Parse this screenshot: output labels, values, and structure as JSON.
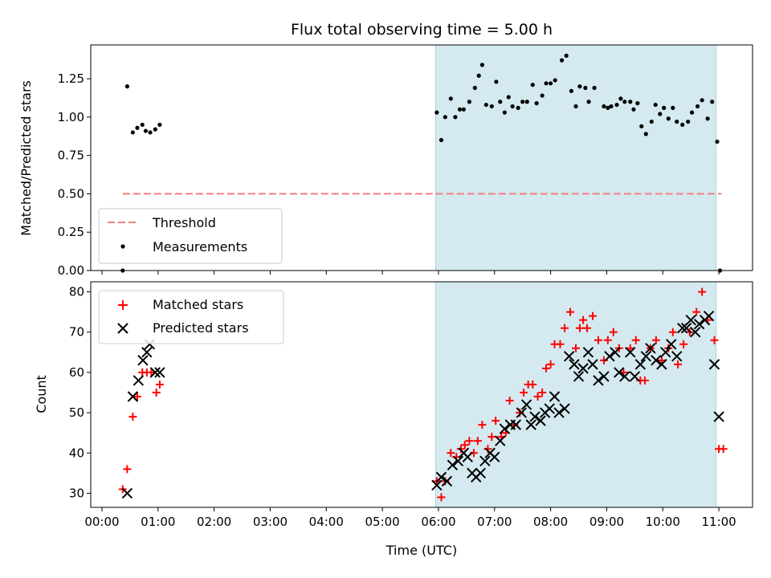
{
  "chart_data": {
    "title": "Flux total observing time = 5.00 h",
    "xlabel": "Time (UTC)",
    "x_unit": "hours (UTC)",
    "xlim": [
      -0.2,
      11.6
    ],
    "xticks": [
      0,
      1,
      2,
      3,
      4,
      5,
      6,
      7,
      8,
      9,
      10,
      11
    ],
    "xtick_labels": [
      "00:00",
      "01:00",
      "02:00",
      "03:00",
      "04:00",
      "05:00",
      "06:00",
      "07:00",
      "08:00",
      "09:00",
      "10:00",
      "11:00"
    ],
    "shaded_span": {
      "x0": 5.95,
      "x1": 10.95,
      "color": "#d4eaf0"
    },
    "top": {
      "type": "scatter",
      "ylabel": "Matched/Predicted stars",
      "ylim": [
        0,
        1.47
      ],
      "yticks": [
        0,
        0.25,
        0.5,
        0.75,
        1.0,
        1.25
      ],
      "ytick_labels": [
        "0.00",
        "0.25",
        "0.50",
        "0.75",
        "1.00",
        "1.25"
      ],
      "threshold": {
        "name": "Threshold",
        "y": 0.5,
        "x0": 0.37,
        "x1": 11.05,
        "color": "#f08080"
      },
      "legend": [
        "Threshold",
        "Measurements"
      ],
      "legend_loc": "lower-left",
      "measurements": {
        "name": "Measurements",
        "points": [
          [
            0.37,
            0.0
          ],
          [
            0.45,
            1.2
          ],
          [
            0.55,
            0.9
          ],
          [
            0.63,
            0.93
          ],
          [
            0.72,
            0.95
          ],
          [
            0.78,
            0.91
          ],
          [
            0.86,
            0.9
          ],
          [
            0.95,
            0.92
          ],
          [
            1.03,
            0.95
          ],
          [
            5.97,
            1.03
          ],
          [
            6.05,
            0.85
          ],
          [
            6.12,
            1.0
          ],
          [
            6.22,
            1.12
          ],
          [
            6.3,
            1.0
          ],
          [
            6.38,
            1.05
          ],
          [
            6.45,
            1.05
          ],
          [
            6.55,
            1.1
          ],
          [
            6.65,
            1.19
          ],
          [
            6.72,
            1.27
          ],
          [
            6.78,
            1.34
          ],
          [
            6.85,
            1.08
          ],
          [
            6.95,
            1.07
          ],
          [
            7.03,
            1.23
          ],
          [
            7.1,
            1.1
          ],
          [
            7.18,
            1.03
          ],
          [
            7.25,
            1.13
          ],
          [
            7.32,
            1.07
          ],
          [
            7.42,
            1.06
          ],
          [
            7.5,
            1.1
          ],
          [
            7.58,
            1.1
          ],
          [
            7.68,
            1.21
          ],
          [
            7.75,
            1.09
          ],
          [
            7.85,
            1.14
          ],
          [
            7.92,
            1.22
          ],
          [
            8.0,
            1.22
          ],
          [
            8.08,
            1.24
          ],
          [
            8.2,
            1.37
          ],
          [
            8.28,
            1.4
          ],
          [
            8.37,
            1.17
          ],
          [
            8.45,
            1.07
          ],
          [
            8.52,
            1.2
          ],
          [
            8.62,
            1.19
          ],
          [
            8.68,
            1.1
          ],
          [
            8.78,
            1.19
          ],
          [
            8.95,
            1.07
          ],
          [
            9.02,
            1.06
          ],
          [
            9.08,
            1.07
          ],
          [
            9.18,
            1.08
          ],
          [
            9.25,
            1.12
          ],
          [
            9.32,
            1.1
          ],
          [
            9.42,
            1.1
          ],
          [
            9.48,
            1.05
          ],
          [
            9.55,
            1.09
          ],
          [
            9.62,
            0.94
          ],
          [
            9.7,
            0.89
          ],
          [
            9.8,
            0.97
          ],
          [
            9.87,
            1.08
          ],
          [
            9.95,
            1.02
          ],
          [
            10.02,
            1.06
          ],
          [
            10.1,
            0.99
          ],
          [
            10.18,
            1.06
          ],
          [
            10.25,
            0.97
          ],
          [
            10.35,
            0.95
          ],
          [
            10.45,
            0.97
          ],
          [
            10.52,
            1.03
          ],
          [
            10.62,
            1.07
          ],
          [
            10.7,
            1.11
          ],
          [
            10.8,
            0.99
          ],
          [
            10.88,
            1.1
          ],
          [
            10.97,
            0.84
          ],
          [
            11.02,
            0.0
          ]
        ]
      }
    },
    "bottom": {
      "type": "scatter",
      "ylabel": "Count",
      "ylim": [
        26.5,
        82.5
      ],
      "yticks": [
        30,
        40,
        50,
        60,
        70,
        80
      ],
      "ytick_labels": [
        "30",
        "40",
        "50",
        "60",
        "70",
        "80"
      ],
      "legend": [
        "Matched stars",
        "Predicted stars"
      ],
      "legend_loc": "upper-left",
      "series": [
        {
          "name": "Matched stars",
          "marker": "plus",
          "color": "#ff0000",
          "points": [
            [
              0.37,
              31
            ],
            [
              0.45,
              36
            ],
            [
              0.55,
              49
            ],
            [
              0.63,
              54
            ],
            [
              0.72,
              60
            ],
            [
              0.8,
              60
            ],
            [
              0.88,
              60
            ],
            [
              0.97,
              55
            ],
            [
              1.03,
              57
            ],
            [
              5.97,
              33
            ],
            [
              6.05,
              29
            ],
            [
              6.12,
              33
            ],
            [
              6.22,
              40
            ],
            [
              6.32,
              39
            ],
            [
              6.4,
              41
            ],
            [
              6.47,
              42
            ],
            [
              6.55,
              43
            ],
            [
              6.63,
              40
            ],
            [
              6.7,
              43
            ],
            [
              6.78,
              47
            ],
            [
              6.88,
              41
            ],
            [
              6.95,
              44
            ],
            [
              7.02,
              48
            ],
            [
              7.12,
              44
            ],
            [
              7.2,
              45
            ],
            [
              7.27,
              53
            ],
            [
              7.35,
              47
            ],
            [
              7.45,
              50
            ],
            [
              7.52,
              55
            ],
            [
              7.6,
              57
            ],
            [
              7.68,
              57
            ],
            [
              7.77,
              54
            ],
            [
              7.85,
              55
            ],
            [
              7.92,
              61
            ],
            [
              8.0,
              62
            ],
            [
              8.07,
              67
            ],
            [
              8.17,
              67
            ],
            [
              8.25,
              71
            ],
            [
              8.35,
              75
            ],
            [
              8.45,
              66
            ],
            [
              8.52,
              71
            ],
            [
              8.58,
              73
            ],
            [
              8.65,
              71
            ],
            [
              8.75,
              74
            ],
            [
              8.85,
              68
            ],
            [
              8.95,
              63
            ],
            [
              9.02,
              68
            ],
            [
              9.12,
              70
            ],
            [
              9.22,
              66
            ],
            [
              9.3,
              60
            ],
            [
              9.42,
              66
            ],
            [
              9.52,
              68
            ],
            [
              9.6,
              58
            ],
            [
              9.68,
              58
            ],
            [
              9.78,
              66
            ],
            [
              9.88,
              68
            ],
            [
              9.98,
              63
            ],
            [
              10.1,
              66
            ],
            [
              10.18,
              70
            ],
            [
              10.27,
              62
            ],
            [
              10.37,
              67
            ],
            [
              10.48,
              70
            ],
            [
              10.6,
              75
            ],
            [
              10.7,
              80
            ],
            [
              10.8,
              73
            ],
            [
              10.92,
              68
            ],
            [
              11.0,
              41
            ],
            [
              11.08,
              41
            ]
          ]
        },
        {
          "name": "Predicted stars",
          "marker": "x",
          "color": "#000000",
          "points": [
            [
              0.45,
              30
            ],
            [
              0.55,
              54
            ],
            [
              0.65,
              58
            ],
            [
              0.73,
              63
            ],
            [
              0.8,
              65
            ],
            [
              0.85,
              67
            ],
            [
              0.95,
              60
            ],
            [
              1.03,
              60
            ],
            [
              5.97,
              32
            ],
            [
              6.05,
              34
            ],
            [
              6.15,
              33
            ],
            [
              6.25,
              37
            ],
            [
              6.35,
              38
            ],
            [
              6.45,
              40
            ],
            [
              6.52,
              39
            ],
            [
              6.6,
              35
            ],
            [
              6.67,
              34
            ],
            [
              6.75,
              35
            ],
            [
              6.83,
              38
            ],
            [
              6.92,
              40
            ],
            [
              7.0,
              39
            ],
            [
              7.1,
              43
            ],
            [
              7.18,
              46
            ],
            [
              7.28,
              47
            ],
            [
              7.38,
              47
            ],
            [
              7.48,
              50
            ],
            [
              7.57,
              52
            ],
            [
              7.65,
              47
            ],
            [
              7.72,
              49
            ],
            [
              7.82,
              48
            ],
            [
              7.9,
              50
            ],
            [
              7.98,
              51
            ],
            [
              8.07,
              54
            ],
            [
              8.15,
              50
            ],
            [
              8.25,
              51
            ],
            [
              8.33,
              64
            ],
            [
              8.42,
              62
            ],
            [
              8.5,
              59
            ],
            [
              8.58,
              61
            ],
            [
              8.67,
              65
            ],
            [
              8.75,
              62
            ],
            [
              8.85,
              58
            ],
            [
              8.95,
              59
            ],
            [
              9.05,
              64
            ],
            [
              9.15,
              65
            ],
            [
              9.22,
              60
            ],
            [
              9.32,
              59
            ],
            [
              9.42,
              65
            ],
            [
              9.5,
              59
            ],
            [
              9.6,
              62
            ],
            [
              9.7,
              64
            ],
            [
              9.78,
              66
            ],
            [
              9.88,
              63
            ],
            [
              9.98,
              62
            ],
            [
              10.05,
              65
            ],
            [
              10.15,
              67
            ],
            [
              10.25,
              64
            ],
            [
              10.35,
              71
            ],
            [
              10.42,
              71
            ],
            [
              10.5,
              73
            ],
            [
              10.58,
              70
            ],
            [
              10.65,
              72
            ],
            [
              10.75,
              73
            ],
            [
              10.82,
              74
            ],
            [
              10.92,
              62
            ],
            [
              11.0,
              49
            ]
          ]
        }
      ]
    }
  }
}
